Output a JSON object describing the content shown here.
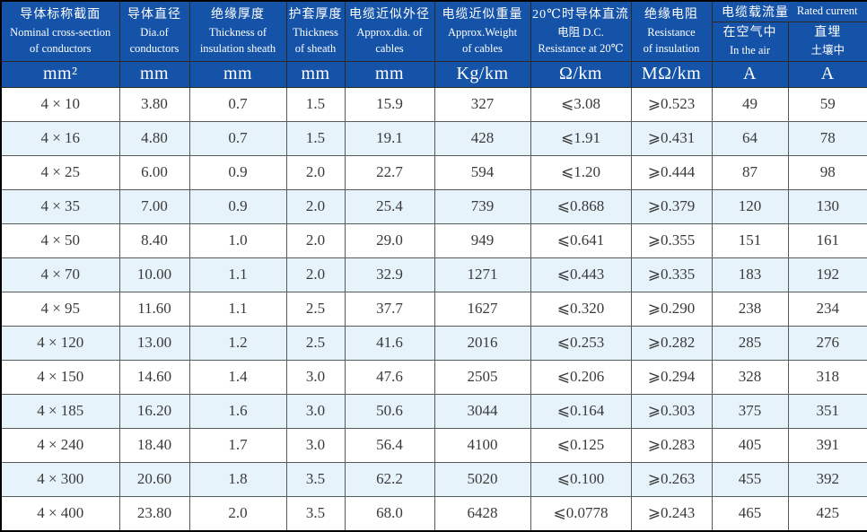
{
  "table": {
    "header": {
      "columns": [
        {
          "lines": [
            "导体标称截面",
            "Nominal cross-section",
            "of conductors"
          ],
          "unit": "mm²"
        },
        {
          "lines": [
            "导体直径",
            "Dia.of",
            "conductors"
          ],
          "unit": "mm"
        },
        {
          "lines": [
            "绝缘厚度",
            "Thickness of",
            "insulation sheath"
          ],
          "unit": "mm"
        },
        {
          "lines": [
            "护套厚度",
            "Thickness",
            "of sheath"
          ],
          "unit": "mm"
        },
        {
          "lines": [
            "电缆近似外径",
            "Approx.dia. of",
            "cables"
          ],
          "unit": "mm"
        },
        {
          "lines": [
            "电缆近似重量",
            "Approx.Weight",
            "of cables"
          ],
          "unit": "Kg/km"
        },
        {
          "lines": [
            "20℃时导体直流",
            "电阻 D.C.",
            "Resistance at 20℃"
          ],
          "unit": "Ω/km"
        },
        {
          "lines": [
            "绝缘电阻",
            "Resistance",
            "of insulation"
          ],
          "unit": "MΩ/km"
        }
      ],
      "current_group": {
        "zh": "电缆载流量",
        "en": "Rated current",
        "sub_columns": [
          {
            "lines": [
              "在空气中",
              "In the air"
            ],
            "unit": "A"
          },
          {
            "lines": [
              "直埋",
              "土壤中"
            ],
            "unit": "A"
          }
        ]
      }
    },
    "rows": [
      [
        "4 × 10",
        "3.80",
        "0.7",
        "1.5",
        "15.9",
        "327",
        "⩽3.08",
        "⩾0.523",
        "49",
        "59"
      ],
      [
        "4 × 16",
        "4.80",
        "0.7",
        "1.5",
        "19.1",
        "428",
        "⩽1.91",
        "⩾0.431",
        "64",
        "78"
      ],
      [
        "4 × 25",
        "6.00",
        "0.9",
        "2.0",
        "22.7",
        "594",
        "⩽1.20",
        "⩾0.444",
        "87",
        "98"
      ],
      [
        "4 × 35",
        "7.00",
        "0.9",
        "2.0",
        "25.4",
        "739",
        "⩽0.868",
        "⩾0.379",
        "120",
        "130"
      ],
      [
        "4 × 50",
        "8.40",
        "1.0",
        "2.0",
        "29.0",
        "949",
        "⩽0.641",
        "⩾0.355",
        "151",
        "161"
      ],
      [
        "4 × 70",
        "10.00",
        "1.1",
        "2.0",
        "32.9",
        "1271",
        "⩽0.443",
        "⩾0.335",
        "183",
        "192"
      ],
      [
        "4 × 95",
        "11.60",
        "1.1",
        "2.5",
        "37.7",
        "1627",
        "⩽0.320",
        "⩾0.290",
        "238",
        "234"
      ],
      [
        "4 × 120",
        "13.00",
        "1.2",
        "2.5",
        "41.6",
        "2016",
        "⩽0.253",
        "⩾0.282",
        "285",
        "276"
      ],
      [
        "4 × 150",
        "14.60",
        "1.4",
        "3.0",
        "47.6",
        "2505",
        "⩽0.206",
        "⩾0.294",
        "328",
        "318"
      ],
      [
        "4 × 185",
        "16.20",
        "1.6",
        "3.0",
        "50.6",
        "3044",
        "⩽0.164",
        "⩾0.303",
        "375",
        "351"
      ],
      [
        "4 × 240",
        "18.40",
        "1.7",
        "3.0",
        "56.4",
        "4100",
        "⩽0.125",
        "⩾0.283",
        "405",
        "391"
      ],
      [
        "4 × 300",
        "20.60",
        "1.8",
        "3.5",
        "62.2",
        "5020",
        "⩽0.100",
        "⩾0.263",
        "455",
        "392"
      ],
      [
        "4 × 400",
        "23.80",
        "2.0",
        "3.5",
        "68.0",
        "6428",
        "⩽0.0778",
        "⩾0.243",
        "465",
        "425"
      ]
    ],
    "colors": {
      "header_bg": "#1553a8",
      "header_text": "#ffffff",
      "row_bg": "#ffffff",
      "row_alt_bg": "#e7f3fb",
      "cell_border": "#5a5a5a",
      "outer_border": "#000000",
      "data_text": "#3a3a3a"
    }
  }
}
